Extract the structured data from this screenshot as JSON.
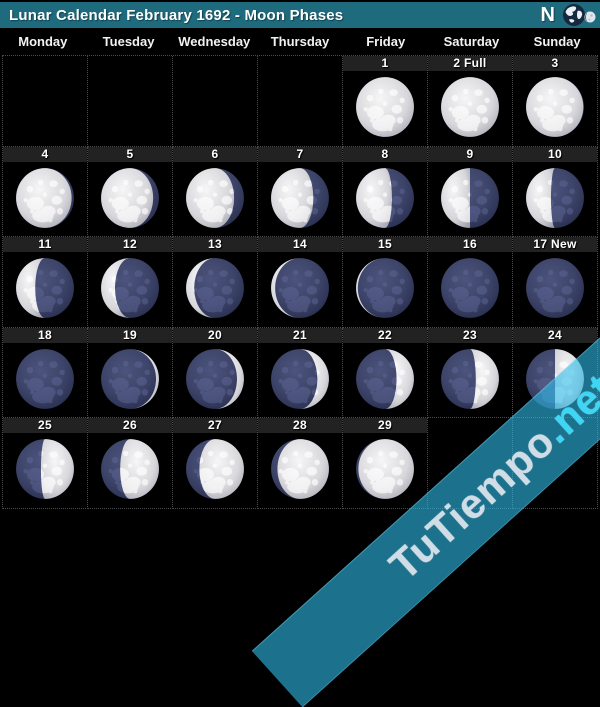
{
  "title_bar": {
    "title": "Lunar Calendar February 1692 - Moon Phases",
    "compass_label": "N"
  },
  "weekdays": [
    "Monday",
    "Tuesday",
    "Wednesday",
    "Thursday",
    "Friday",
    "Saturday",
    "Sunday"
  ],
  "weeks": [
    [
      null,
      null,
      null,
      null,
      {
        "label": "1",
        "illum": 1.0,
        "side": "left"
      },
      {
        "label": "2 Full",
        "illum": 1.0,
        "side": "left"
      },
      {
        "label": "3",
        "illum": 0.99,
        "side": "left"
      }
    ],
    [
      {
        "label": "4",
        "illum": 0.96,
        "side": "left"
      },
      {
        "label": "5",
        "illum": 0.9,
        "side": "left"
      },
      {
        "label": "6",
        "illum": 0.83,
        "side": "left"
      },
      {
        "label": "7",
        "illum": 0.73,
        "side": "left"
      },
      {
        "label": "8",
        "illum": 0.62,
        "side": "left"
      },
      {
        "label": "9",
        "illum": 0.5,
        "side": "left"
      },
      {
        "label": "10",
        "illum": 0.43,
        "side": "left"
      }
    ],
    [
      {
        "label": "11",
        "illum": 0.33,
        "side": "left"
      },
      {
        "label": "12",
        "illum": 0.24,
        "side": "left"
      },
      {
        "label": "13",
        "illum": 0.14,
        "side": "left"
      },
      {
        "label": "14",
        "illum": 0.07,
        "side": "left"
      },
      {
        "label": "15",
        "illum": 0.03,
        "side": "left"
      },
      {
        "label": "16",
        "illum": 0.0,
        "side": "left"
      },
      {
        "label": "17 New",
        "illum": 0.0,
        "side": "left"
      }
    ],
    [
      {
        "label": "18",
        "illum": 0.0,
        "side": "right"
      },
      {
        "label": "19",
        "illum": 0.05,
        "side": "right"
      },
      {
        "label": "20",
        "illum": 0.12,
        "side": "right"
      },
      {
        "label": "21",
        "illum": 0.2,
        "side": "right"
      },
      {
        "label": "22",
        "illum": 0.3,
        "side": "right"
      },
      {
        "label": "23",
        "illum": 0.4,
        "side": "right"
      },
      {
        "label": "24",
        "illum": 0.5,
        "side": "right"
      }
    ],
    [
      {
        "label": "25",
        "illum": 0.57,
        "side": "right"
      },
      {
        "label": "26",
        "illum": 0.67,
        "side": "right"
      },
      {
        "label": "27",
        "illum": 0.77,
        "side": "right"
      },
      {
        "label": "28",
        "illum": 0.89,
        "side": "right"
      },
      {
        "label": "29",
        "illum": 0.96,
        "side": "right"
      },
      null,
      null
    ]
  ],
  "watermark": {
    "main": "TuTiempo",
    "suffix": ".net"
  },
  "colors": {
    "header_bg": "#1e6b7d",
    "day_strip_bg": "#222222",
    "grid_border": "#4c4c4c",
    "moon_dark": "#3d4469",
    "moon_light": "#d8d8dc",
    "watermark_band": "rgba(47,189,234,0.60)",
    "watermark_net": "#3dd6f5"
  }
}
